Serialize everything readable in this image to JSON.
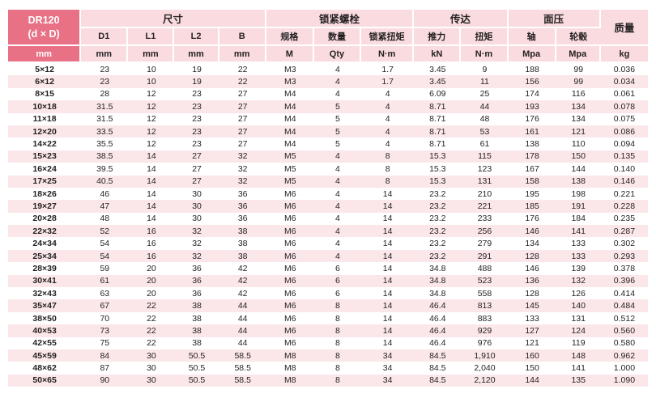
{
  "colors": {
    "accent_dark_pink": "#e87186",
    "header_pink": "#fadce0",
    "stripe_pink": "#fbe7e9",
    "text": "#231f20",
    "page_background": "#ffffff"
  },
  "header": {
    "model": "DR120",
    "model_sub": "(d × D)",
    "groups": [
      {
        "label": "尺寸",
        "colspan": 4
      },
      {
        "label": "锁紧螺栓",
        "colspan": 3
      },
      {
        "label": "传达",
        "colspan": 2
      },
      {
        "label": "面压",
        "colspan": 2
      }
    ],
    "mass_label": "质量",
    "subheaders": [
      "D1",
      "L1",
      "L2",
      "B",
      "规格",
      "数量",
      "锁紧扭矩",
      "推力",
      "扭矩",
      "轴",
      "轮毂"
    ],
    "units": [
      "mm",
      "mm",
      "mm",
      "mm",
      "mm",
      "M",
      "Qty",
      "N·m",
      "kN",
      "N·m",
      "Mpa",
      "Mpa",
      "kg"
    ]
  },
  "rows": [
    [
      "5×12",
      "23",
      "10",
      "19",
      "22",
      "M3",
      "4",
      "1.7",
      "3.45",
      "9",
      "188",
      "99",
      "0.036"
    ],
    [
      "6×12",
      "23",
      "10",
      "19",
      "22",
      "M3",
      "4",
      "1.7",
      "3.45",
      "11",
      "156",
      "99",
      "0.034"
    ],
    [
      "8×15",
      "28",
      "12",
      "23",
      "27",
      "M4",
      "4",
      "4",
      "6.09",
      "25",
      "174",
      "116",
      "0.061"
    ],
    [
      "10×18",
      "31.5",
      "12",
      "23",
      "27",
      "M4",
      "5",
      "4",
      "8.71",
      "44",
      "193",
      "134",
      "0.078"
    ],
    [
      "11×18",
      "31.5",
      "12",
      "23",
      "27",
      "M4",
      "5",
      "4",
      "8.71",
      "48",
      "176",
      "134",
      "0.075"
    ],
    [
      "12×20",
      "33.5",
      "12",
      "23",
      "27",
      "M4",
      "5",
      "4",
      "8.71",
      "53",
      "161",
      "121",
      "0.086"
    ],
    [
      "14×22",
      "35.5",
      "12",
      "23",
      "27",
      "M4",
      "5",
      "4",
      "8.71",
      "61",
      "138",
      "110",
      "0.094"
    ],
    [
      "15×23",
      "38.5",
      "14",
      "27",
      "32",
      "M5",
      "4",
      "8",
      "15.3",
      "115",
      "178",
      "150",
      "0.135"
    ],
    [
      "16×24",
      "39.5",
      "14",
      "27",
      "32",
      "M5",
      "4",
      "8",
      "15.3",
      "123",
      "167",
      "144",
      "0.140"
    ],
    [
      "17×25",
      "40.5",
      "14",
      "27",
      "32",
      "M5",
      "4",
      "8",
      "15.3",
      "131",
      "158",
      "138",
      "0.146"
    ],
    [
      "18×26",
      "46",
      "14",
      "30",
      "36",
      "M6",
      "4",
      "14",
      "23.2",
      "210",
      "195",
      "198",
      "0.221"
    ],
    [
      "19×27",
      "47",
      "14",
      "30",
      "36",
      "M6",
      "4",
      "14",
      "23.2",
      "221",
      "185",
      "191",
      "0.228"
    ],
    [
      "20×28",
      "48",
      "14",
      "30",
      "36",
      "M6",
      "4",
      "14",
      "23.2",
      "233",
      "176",
      "184",
      "0.235"
    ],
    [
      "22×32",
      "52",
      "16",
      "32",
      "38",
      "M6",
      "4",
      "14",
      "23.2",
      "256",
      "146",
      "141",
      "0.287"
    ],
    [
      "24×34",
      "54",
      "16",
      "32",
      "38",
      "M6",
      "4",
      "14",
      "23.2",
      "279",
      "134",
      "133",
      "0.302"
    ],
    [
      "25×34",
      "54",
      "16",
      "32",
      "38",
      "M6",
      "4",
      "14",
      "23.2",
      "291",
      "128",
      "133",
      "0.293"
    ],
    [
      "28×39",
      "59",
      "20",
      "36",
      "42",
      "M6",
      "6",
      "14",
      "34.8",
      "488",
      "146",
      "139",
      "0.378"
    ],
    [
      "30×41",
      "61",
      "20",
      "36",
      "42",
      "M6",
      "6",
      "14",
      "34.8",
      "523",
      "136",
      "132",
      "0.396"
    ],
    [
      "32×43",
      "63",
      "20",
      "36",
      "42",
      "M6",
      "6",
      "14",
      "34.8",
      "558",
      "128",
      "126",
      "0.414"
    ],
    [
      "35×47",
      "67",
      "22",
      "38",
      "44",
      "M6",
      "8",
      "14",
      "46.4",
      "813",
      "145",
      "140",
      "0.484"
    ],
    [
      "38×50",
      "70",
      "22",
      "38",
      "44",
      "M6",
      "8",
      "14",
      "46.4",
      "883",
      "133",
      "131",
      "0.512"
    ],
    [
      "40×53",
      "73",
      "22",
      "38",
      "44",
      "M6",
      "8",
      "14",
      "46.4",
      "929",
      "127",
      "124",
      "0.560"
    ],
    [
      "42×55",
      "75",
      "22",
      "38",
      "44",
      "M6",
      "8",
      "14",
      "46.4",
      "976",
      "121",
      "119",
      "0.580"
    ],
    [
      "45×59",
      "84",
      "30",
      "50.5",
      "58.5",
      "M8",
      "8",
      "34",
      "84.5",
      "1,910",
      "160",
      "148",
      "0.962"
    ],
    [
      "48×62",
      "87",
      "30",
      "50.5",
      "58.5",
      "M8",
      "8",
      "34",
      "84.5",
      "2,040",
      "150",
      "141",
      "1.000"
    ],
    [
      "50×65",
      "90",
      "30",
      "50.5",
      "58.5",
      "M8",
      "8",
      "34",
      "84.5",
      "2,120",
      "144",
      "135",
      "1.090"
    ]
  ]
}
